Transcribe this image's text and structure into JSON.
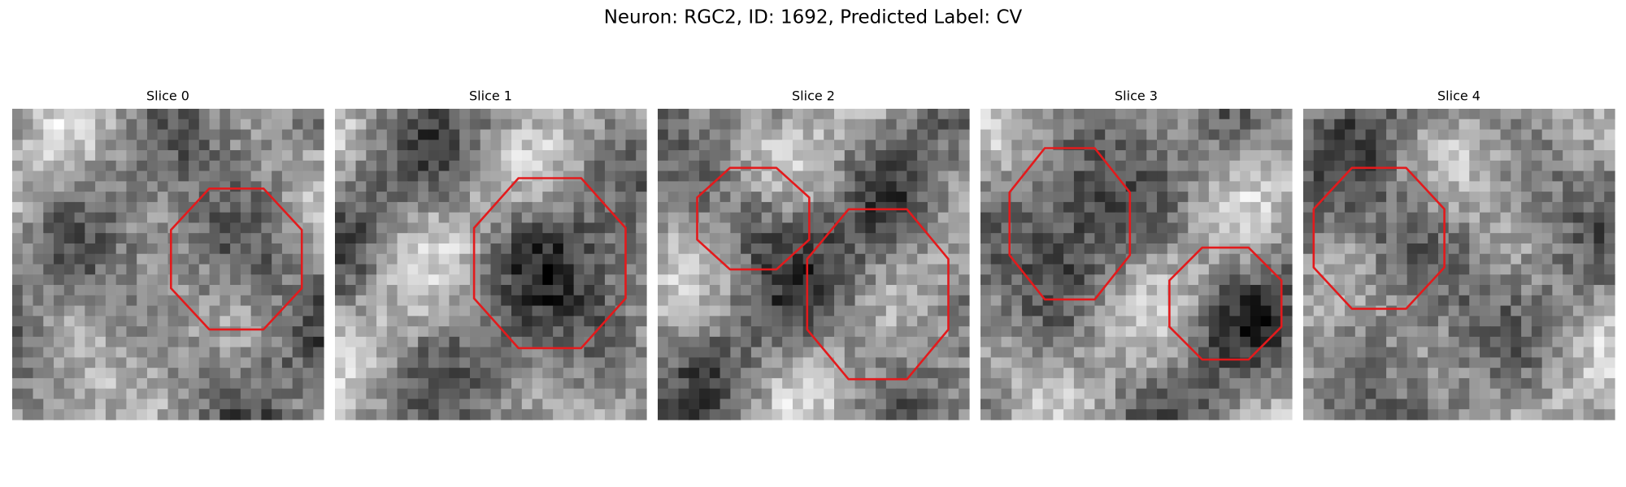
{
  "title": "Neuron: RGC2, ID: 1692, Predicted Label: CV",
  "panels": [
    {
      "title": "Slice 0"
    },
    {
      "title": "Slice 1"
    },
    {
      "title": "Slice 2"
    },
    {
      "title": "Slice 3"
    },
    {
      "title": "Slice 4"
    }
  ]
}
